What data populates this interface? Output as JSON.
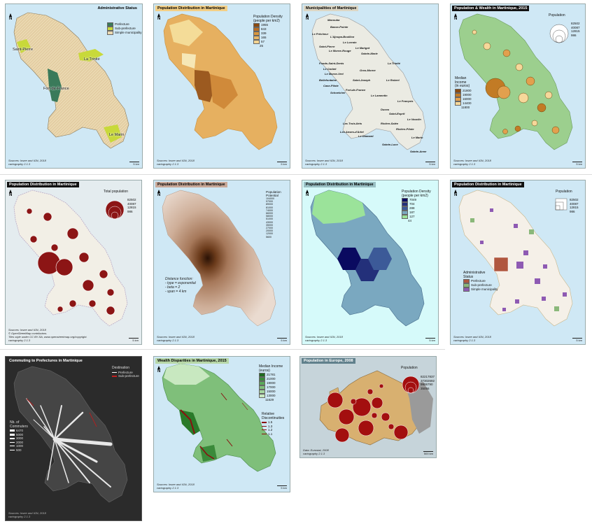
{
  "panels": {
    "p1": {
      "title": "Administrative Status",
      "sources": "Sources: Insee and IGN, 2018\ncartography 2.1.3",
      "scale": "5 km",
      "legend": [
        "Prefecture",
        "Sub-prefecture",
        "Simple municipality"
      ],
      "labels": [
        "Saint-Pierre",
        "La Trinité",
        "Fort-de-France",
        "Le Marin"
      ],
      "colors": {
        "prefecture": "#3a7a5a",
        "subprefecture": "#c8d93a",
        "simple": "#ead8b0"
      }
    },
    "p2": {
      "title": "Population Distribution in Martinique",
      "sources": "Sources: Insee and IGN, 2018\ncartography 2.1.3",
      "scale": "5 km",
      "legend_title": "Population Density\n(people per km2)",
      "legend": [
        "1955",
        "843",
        "339",
        "165",
        "57",
        "25"
      ]
    },
    "p3": {
      "title": "Municipalities of Martinique",
      "sources": "Sources: Insee and IGN, 2018\ncartography 2.1.3",
      "scale": "5 km",
      "names": [
        "Macouba",
        "Basse-Pointe",
        "Le Prêcheur",
        "L'Ajoupa-Bouillon",
        "Le Lorrain",
        "Saint-Pierre",
        "Le Marigot",
        "Le Morne-Rouge",
        "Sainte-Marie",
        "Fonds-Saint-Denis",
        "La Trinité",
        "Le Carbet",
        "Gros-Morne",
        "Le Morne-Vert",
        "Bellefontaine",
        "Saint-Joseph",
        "Le Robert",
        "Case-Pilote",
        "Schoelcher",
        "Fort-de-France",
        "Le Lamentin",
        "Le François",
        "Ducos",
        "Saint-Esprit",
        "Le Vauclin",
        "Les Trois-Ilets",
        "Rivière-Salée",
        "Les Anses-d'Arlet",
        "Le Diamant",
        "Rivière-Pilote",
        "Sainte-Luce",
        "Le Marin",
        "Sainte-Anne"
      ]
    },
    "p4": {
      "title": "Population & Wealth in Martinique, 2015",
      "sources": "Sources: Insee and IGN, 2018\ncartography 2.1.3",
      "scale": "5 km",
      "pop_title": "Population",
      "pop_values": [
        "82502",
        "40087",
        "12815",
        "986"
      ],
      "income_title": "Median\nIncome\n(in euros)",
      "income_values": [
        "21800",
        "19000",
        "16000",
        "14400",
        "11800"
      ]
    },
    "p5": {
      "title": "Population Distribution in Martinique",
      "sources": "Sources: Insee and IGN, 2018\n© OpenStreetMap contributors.\nTiles style under CC BY-SA, www.openstreetmap.org/copyright.\ncartography 2.1.3",
      "scale": "5 km",
      "pop_title": "Total population",
      "pop_values": [
        "82502",
        "40087",
        "12815",
        "986"
      ]
    },
    "p6": {
      "title": "Population Distribution in Martinique",
      "sources": "Sources: Insee and IGN, 2018\ncartography 2.1.3",
      "scale": "5 km",
      "legend_title": "Population\nPotential",
      "legend": [
        "104000",
        "97000",
        "89000",
        "81000",
        "74000",
        "66000",
        "58000",
        "51000",
        "43000",
        "35000",
        "27000",
        "20000",
        "12000",
        "5600"
      ],
      "note": "Distance function:\n- type = exponential\n- beta = 2\n- span = 4 km"
    },
    "p7": {
      "title": "Population Distribution in Martinique",
      "sources": "Sources: Insee and IGN, 2018\ncartography 2.1.3",
      "scale": "5 km",
      "legend_title": "Population Density\n(people per km2)",
      "legend": [
        "7049",
        "704",
        "288",
        "187",
        "127",
        "44"
      ]
    },
    "p8": {
      "title": "Population Distribution in Martinique",
      "sources": "Sources: Insee and IGN, 2018\ncartography 2.1.3",
      "scale": "5 km",
      "pop_title": "Population",
      "pop_values": [
        "82502",
        "40087",
        "12815",
        "986"
      ],
      "status_title": "Administrative\nStatus",
      "status": [
        "Prefecture",
        "Sub-prefecture",
        "Simple municipality"
      ]
    },
    "p9": {
      "title": "Commuting to Prefectures in Martinique",
      "sources": "Sources: Insee and IGN, 2018\ncartography 2.1.3",
      "dest_title": "Destination",
      "dest": [
        "Prefecture",
        "Sub-prefecture"
      ],
      "count_title": "Nb. of\nCommuters",
      "counts": [
        "6470",
        "5000",
        "3000",
        "2000",
        "1000",
        "500"
      ]
    },
    "p10": {
      "title": "Wealth Disparities in Martinique, 2015",
      "sources": "Sources: Insee and IGN, 2018\ncartography 2.1.3",
      "scale": "5 km",
      "income_title": "Median Income\n(euros)",
      "income": [
        "21781",
        "21000",
        "19000",
        "17000",
        "15000",
        "13000",
        "11629"
      ],
      "disc_title": "Relative\nDiscontinuities",
      "disc": [
        "1.5",
        "1.3",
        "1.2",
        "1.1"
      ]
    },
    "p11": {
      "title": "Population in Europe, 2008",
      "sources": "Data: Eurostat, 2008\ncartography 2.1.3",
      "scale": "500 km",
      "pop_title": "Population",
      "pop_values": [
        "82217837",
        "37302692",
        "9906790",
        "35056"
      ]
    }
  }
}
